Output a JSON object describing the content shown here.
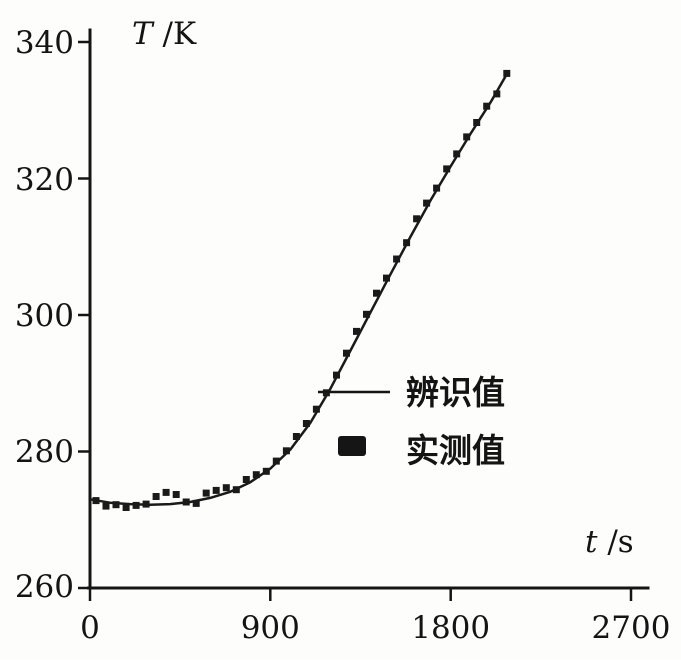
{
  "chart_data": {
    "type": "line",
    "title": "",
    "xlabel": "t /s",
    "ylabel": "T /K",
    "xlabel_var": "t",
    "xlabel_unit": " /s",
    "ylabel_var": "T",
    "ylabel_unit": " /K",
    "xlim": [
      0,
      2700
    ],
    "ylim": [
      260,
      340
    ],
    "xticks": [
      "0",
      "900",
      "1800",
      "2700"
    ],
    "yticks": [
      "260",
      "280",
      "300",
      "320",
      "340"
    ],
    "grid": false,
    "line_color": "#1a1a1a",
    "marker_color": "#1a1a1a",
    "legend_position": "center-right",
    "legend": [
      {
        "label": "辨识值",
        "marker": "line"
      },
      {
        "label": "实测值",
        "marker": "square"
      }
    ],
    "series": [
      {
        "name": "辨识值",
        "style": "line",
        "color": "#1a1a1a",
        "points": [
          [
            0,
            273.0
          ],
          [
            100,
            272.5
          ],
          [
            200,
            272.3
          ],
          [
            300,
            272.2
          ],
          [
            400,
            272.3
          ],
          [
            500,
            272.6
          ],
          [
            600,
            273.2
          ],
          [
            700,
            274.1
          ],
          [
            800,
            275.5
          ],
          [
            900,
            277.5
          ],
          [
            1000,
            280.3
          ],
          [
            1100,
            284.2
          ],
          [
            1200,
            289.2
          ],
          [
            1300,
            294.8
          ],
          [
            1400,
            300.4
          ],
          [
            1500,
            306.0
          ],
          [
            1600,
            311.5
          ],
          [
            1700,
            316.8
          ],
          [
            1800,
            321.8
          ],
          [
            1900,
            326.6
          ],
          [
            2000,
            331.2
          ],
          [
            2080,
            335.3
          ]
        ]
      },
      {
        "name": "实测值",
        "style": "scatter",
        "marker": "square",
        "color": "#1a1a1a",
        "points": [
          [
            30,
            272.8
          ],
          [
            80,
            272.0
          ],
          [
            130,
            272.2
          ],
          [
            180,
            271.8
          ],
          [
            230,
            272.1
          ],
          [
            280,
            272.3
          ],
          [
            330,
            273.4
          ],
          [
            380,
            274.0
          ],
          [
            430,
            273.7
          ],
          [
            480,
            272.6
          ],
          [
            530,
            272.4
          ],
          [
            580,
            273.9
          ],
          [
            630,
            274.3
          ],
          [
            680,
            274.7
          ],
          [
            730,
            274.4
          ],
          [
            780,
            275.9
          ],
          [
            830,
            276.6
          ],
          [
            880,
            277.1
          ],
          [
            930,
            278.6
          ],
          [
            980,
            280.1
          ],
          [
            1030,
            282.2
          ],
          [
            1080,
            284.1
          ],
          [
            1130,
            286.2
          ],
          [
            1180,
            288.6
          ],
          [
            1230,
            291.2
          ],
          [
            1280,
            294.4
          ],
          [
            1330,
            297.6
          ],
          [
            1380,
            300.1
          ],
          [
            1430,
            303.2
          ],
          [
            1480,
            305.4
          ],
          [
            1530,
            308.2
          ],
          [
            1580,
            310.6
          ],
          [
            1630,
            314.1
          ],
          [
            1680,
            316.4
          ],
          [
            1730,
            318.6
          ],
          [
            1780,
            321.4
          ],
          [
            1830,
            323.6
          ],
          [
            1880,
            326.1
          ],
          [
            1930,
            328.2
          ],
          [
            1980,
            330.6
          ],
          [
            2030,
            332.4
          ],
          [
            2080,
            335.4
          ]
        ]
      }
    ]
  }
}
